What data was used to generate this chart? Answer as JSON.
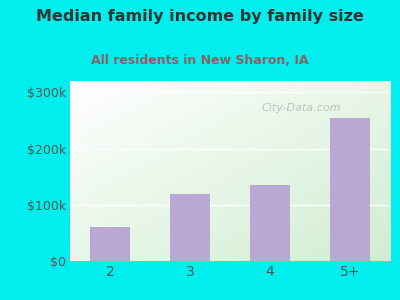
{
  "title": "Median family income by family size",
  "subtitle": "All residents in New Sharon, IA",
  "categories": [
    "2",
    "3",
    "4",
    "5+"
  ],
  "values": [
    60000,
    120000,
    135000,
    255000
  ],
  "bar_color": "#b9a8d4",
  "title_color": "#333333",
  "subtitle_color": "#8B6060",
  "background_color": "#00EEEE",
  "yticks": [
    0,
    100000,
    200000,
    300000
  ],
  "ylim": [
    0,
    320000
  ],
  "tick_labels": [
    "$0",
    "$100k",
    "$200k",
    "$300k"
  ]
}
